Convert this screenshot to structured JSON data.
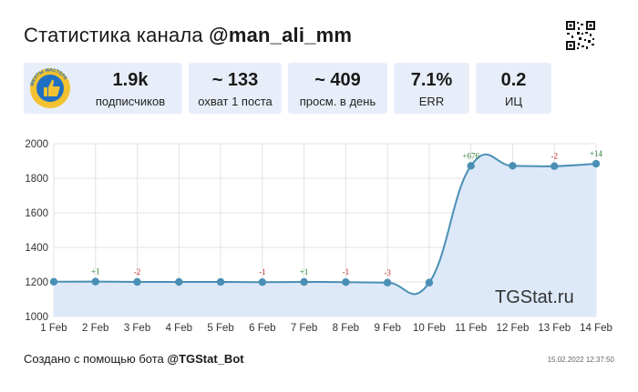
{
  "header": {
    "title_prefix": "Статистика канала ",
    "title_handle": "@man_ali_mm"
  },
  "stats": [
    {
      "value": "1.9k",
      "label": "подписчиков"
    },
    {
      "value": "~ 133",
      "label": "охват 1 поста"
    },
    {
      "value": "~ 409",
      "label": "просм. в день"
    },
    {
      "value": "7.1%",
      "label": "ERR"
    },
    {
      "value": "0.2",
      "label": "ИЦ"
    }
  ],
  "avatar": {
    "ring_text": "МЕНТЫ МАСТЕРА"
  },
  "watermark": "TGStat.ru",
  "footer": {
    "created_text": "Создано с помощью бота ",
    "bot_handle": "@TGStat_Bot",
    "timestamp": "15.02.2022 12:37:50"
  },
  "colors": {
    "line": "#4a8fb5",
    "fill": "#dde9f8",
    "positive": "#2e7d32",
    "negative": "#c62828"
  },
  "chart_data": {
    "type": "area",
    "categories": [
      "1 Feb",
      "2 Feb",
      "3 Feb",
      "4 Feb",
      "5 Feb",
      "6 Feb",
      "7 Feb",
      "8 Feb",
      "9 Feb",
      "10 Feb",
      "11 Feb",
      "12 Feb",
      "13 Feb",
      "14 Feb"
    ],
    "values": [
      1201,
      1202,
      1200,
      1200,
      1200,
      1199,
      1200,
      1199,
      1196,
      1196,
      1872,
      1872,
      1870,
      1884
    ],
    "annotations": [
      "",
      "+1",
      "-2",
      "",
      "",
      "-1",
      "+1",
      "-1",
      "-3",
      "",
      "+676",
      "",
      "-2",
      "+14"
    ],
    "y_ticks": [
      1000,
      1200,
      1400,
      1600,
      1800,
      2000
    ],
    "ylim": [
      1000,
      2000
    ],
    "grid": true,
    "legend": "none"
  }
}
